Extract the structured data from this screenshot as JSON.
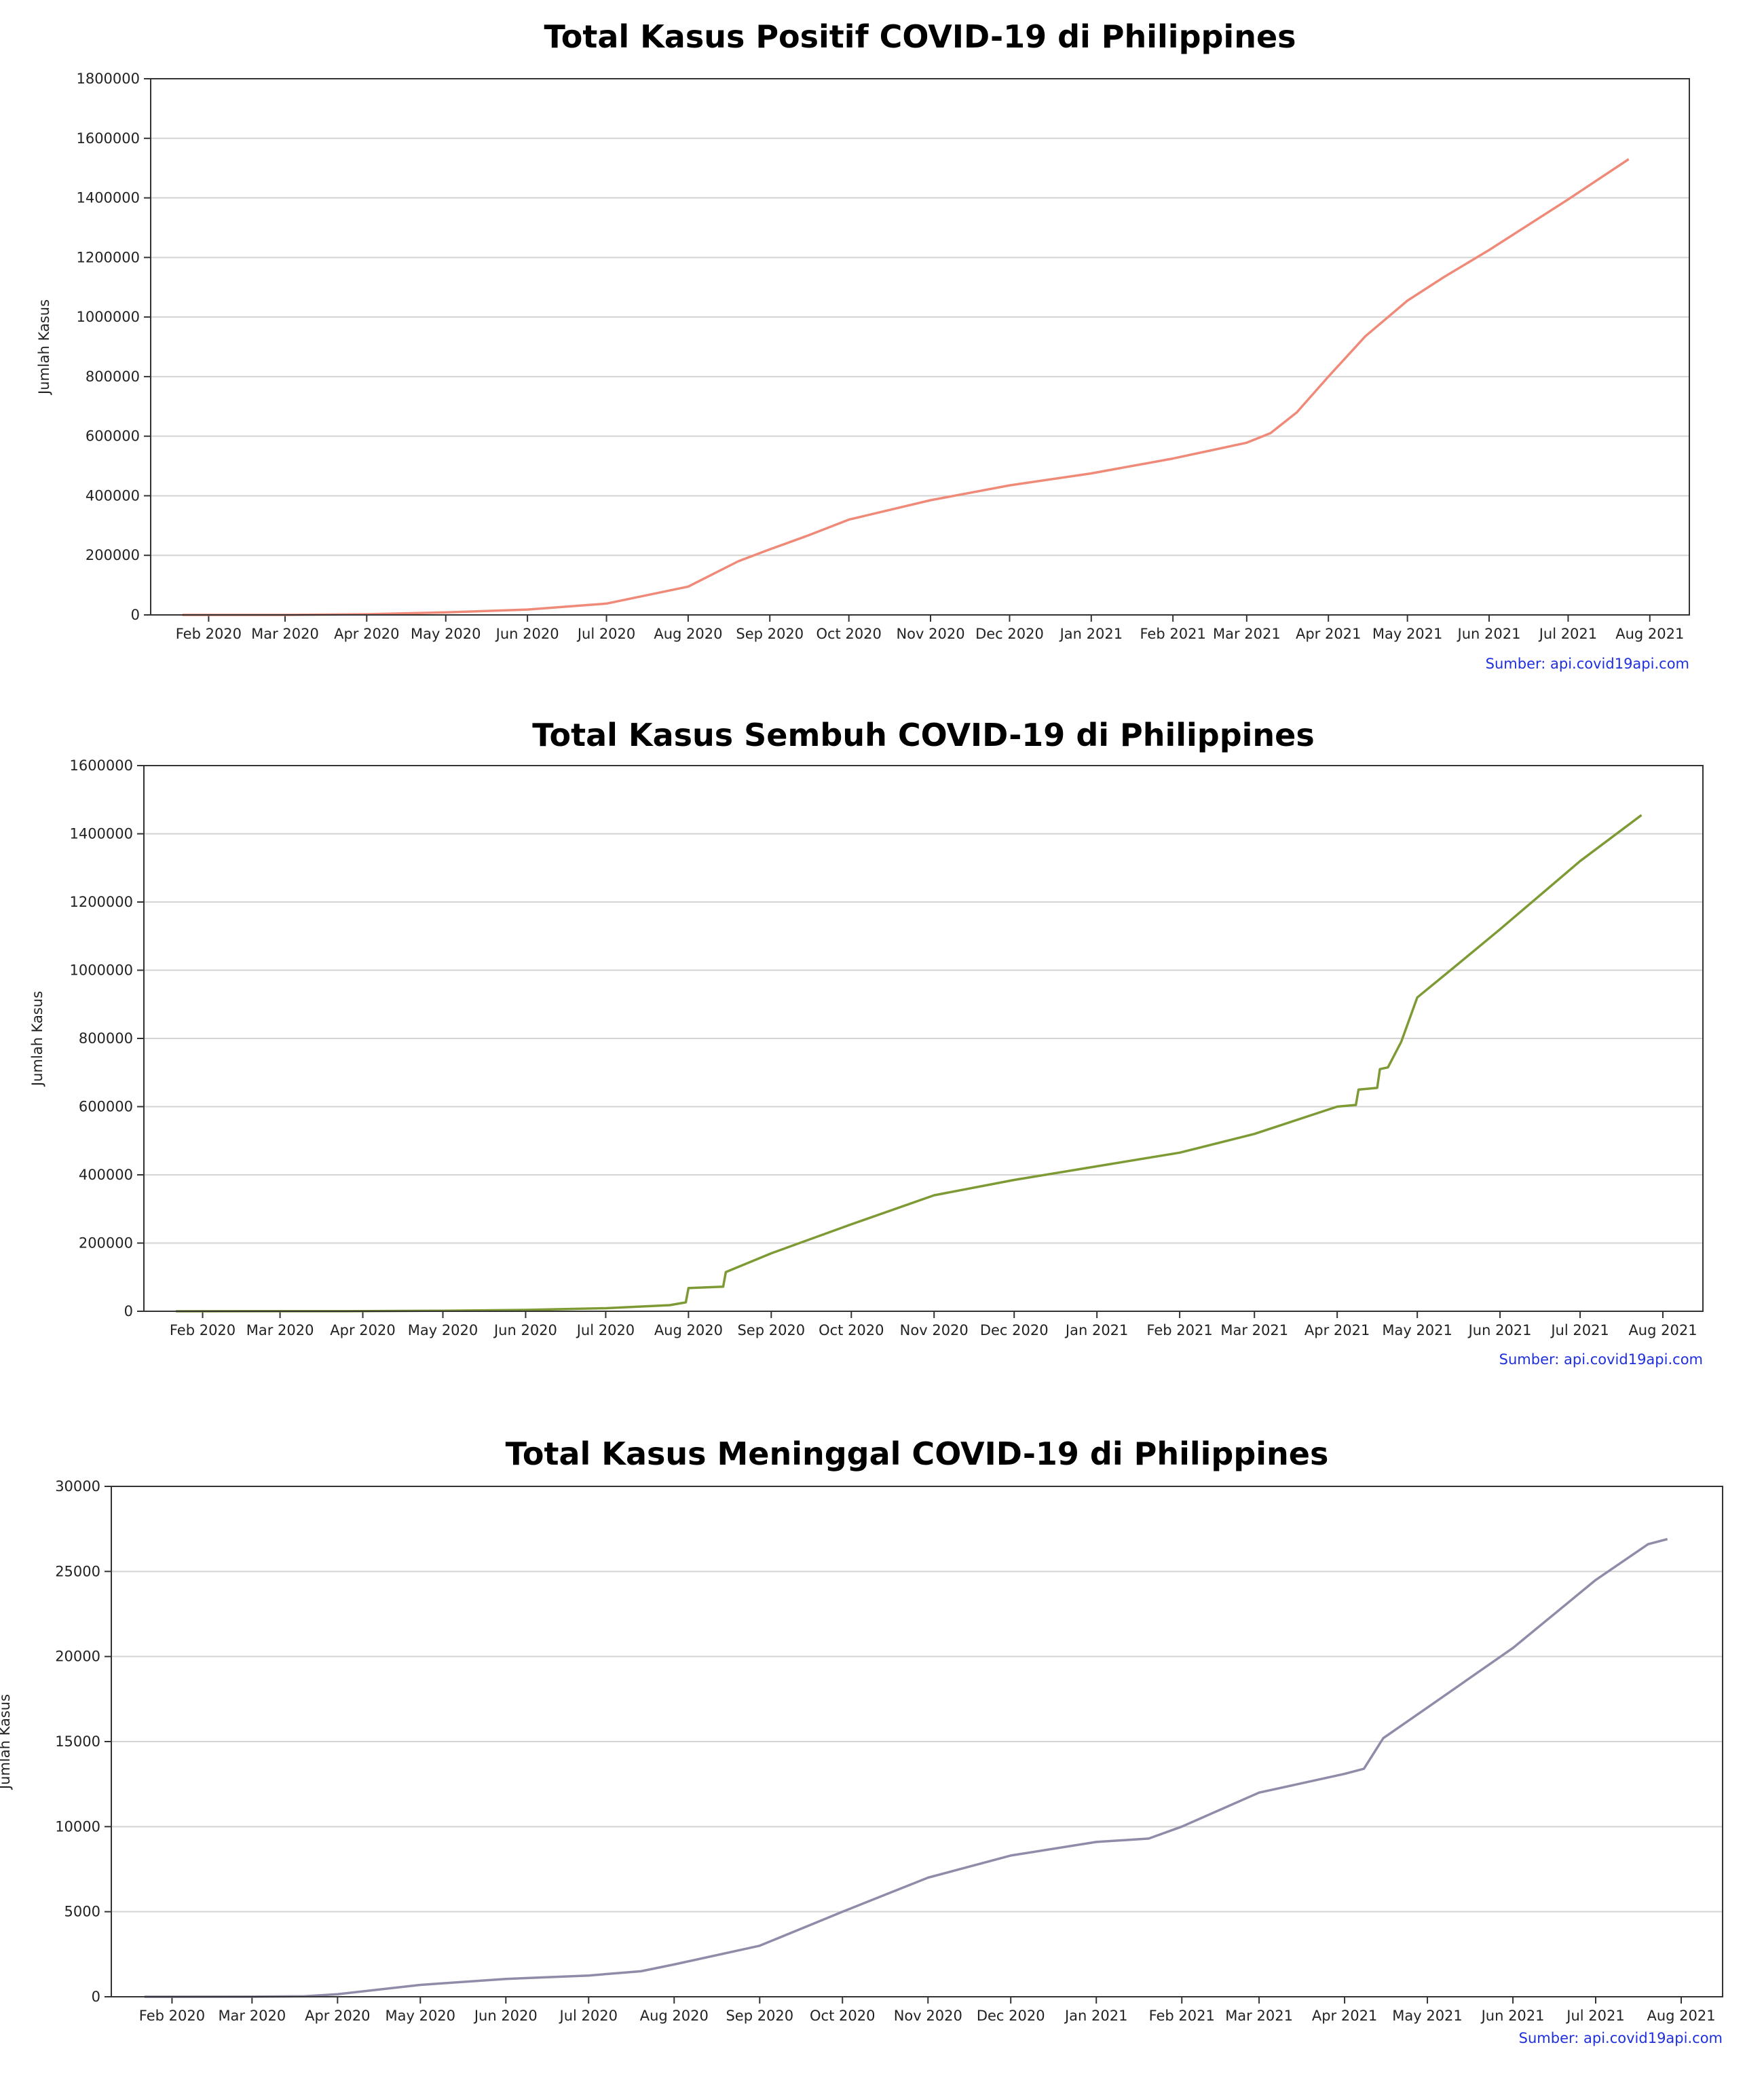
{
  "chart_data": [
    {
      "type": "line",
      "title": "Total Kasus Positif COVID-19 di Philippines",
      "xlabel": "",
      "ylabel": "Jumlah Kasus",
      "source": "Sumber: api.covid19api.com",
      "color": "#f08a78",
      "ylim": [
        0,
        1800000
      ],
      "yticks": [
        "0",
        "200000",
        "400000",
        "600000",
        "800000",
        "1000000",
        "1200000",
        "1400000",
        "1600000",
        "1800000"
      ],
      "xlim": [
        "2020-01-10",
        "2021-08-16"
      ],
      "xticks": [
        "Feb 2020",
        "Mar 2020",
        "Apr 2020",
        "May 2020",
        "Jun 2020",
        "Jul 2020",
        "Aug 2020",
        "Sep 2020",
        "Oct 2020",
        "Nov 2020",
        "Dec 2020",
        "Jan 2021",
        "Feb 2021",
        "Mar 2021",
        "Apr 2021",
        "May 2021",
        "Jun 2021",
        "Jul 2021",
        "Aug 2021"
      ],
      "grid": "horizontal",
      "x": [
        "2020-01-22",
        "2020-03-01",
        "2020-04-01",
        "2020-05-01",
        "2020-06-01",
        "2020-07-01",
        "2020-08-01",
        "2020-08-20",
        "2020-09-01",
        "2020-09-15",
        "2020-10-01",
        "2020-11-01",
        "2020-12-01",
        "2021-01-01",
        "2021-02-01",
        "2021-03-01",
        "2021-03-10",
        "2021-03-20",
        "2021-04-01",
        "2021-04-15",
        "2021-05-01",
        "2021-05-15",
        "2021-06-01",
        "2021-07-01",
        "2021-07-24"
      ],
      "y": [
        1,
        3,
        2300,
        8500,
        18000,
        38000,
        95000,
        180000,
        220000,
        265000,
        320000,
        385000,
        435000,
        475000,
        525000,
        578000,
        610000,
        680000,
        800000,
        935000,
        1055000,
        1135000,
        1225000,
        1395000,
        1530000
      ]
    },
    {
      "type": "line",
      "title": "Total Kasus Sembuh COVID-19 di Philippines",
      "xlabel": "",
      "ylabel": "Jumlah Kasus",
      "source": "Sumber: api.covid19api.com",
      "color": "#7e9a35",
      "ylim": [
        0,
        1600000
      ],
      "yticks": [
        "0",
        "200000",
        "400000",
        "600000",
        "800000",
        "1000000",
        "1200000",
        "1400000",
        "1600000"
      ],
      "xlim": [
        "2020-01-10",
        "2021-08-16"
      ],
      "xticks": [
        "Feb 2020",
        "Mar 2020",
        "Apr 2020",
        "May 2020",
        "Jun 2020",
        "Jul 2020",
        "Aug 2020",
        "Sep 2020",
        "Oct 2020",
        "Nov 2020",
        "Dec 2020",
        "Jan 2021",
        "Feb 2021",
        "Mar 2021",
        "Apr 2021",
        "May 2021",
        "Jun 2021",
        "Jul 2021",
        "Aug 2021"
      ],
      "grid": "horizontal",
      "x": [
        "2020-01-22",
        "2020-03-01",
        "2020-04-01",
        "2020-05-01",
        "2020-06-01",
        "2020-07-01",
        "2020-07-25",
        "2020-07-31",
        "2020-08-01",
        "2020-08-14",
        "2020-08-15",
        "2020-09-01",
        "2020-10-01",
        "2020-11-01",
        "2020-12-01",
        "2021-01-01",
        "2021-02-01",
        "2021-03-01",
        "2021-04-01",
        "2021-04-08",
        "2021-04-09",
        "2021-04-16",
        "2021-04-17",
        "2021-04-20",
        "2021-04-25",
        "2021-05-01",
        "2021-05-15",
        "2021-06-01",
        "2021-07-01",
        "2021-07-24"
      ],
      "y": [
        0,
        100,
        400,
        1500,
        4000,
        9000,
        18000,
        26000,
        68000,
        72000,
        115000,
        170000,
        255000,
        340000,
        385000,
        425000,
        465000,
        520000,
        600000,
        605000,
        650000,
        655000,
        710000,
        715000,
        790000,
        920000,
        1010000,
        1120000,
        1320000,
        1455000
      ]
    },
    {
      "type": "line",
      "title": "Total Kasus Meninggal COVID-19 di Philippines",
      "xlabel": "",
      "ylabel": "Jumlah Kasus",
      "source": "Sumber: api.covid19api.com",
      "color": "#8e8ca8",
      "ylim": [
        0,
        30000
      ],
      "yticks": [
        "0",
        "5000",
        "10000",
        "15000",
        "20000",
        "25000",
        "30000"
      ],
      "xlim": [
        "2020-01-10",
        "2021-08-16"
      ],
      "xticks": [
        "Feb 2020",
        "Mar 2020",
        "Apr 2020",
        "May 2020",
        "Jun 2020",
        "Jul 2020",
        "Aug 2020",
        "Sep 2020",
        "Oct 2020",
        "Nov 2020",
        "Dec 2020",
        "Jan 2021",
        "Feb 2021",
        "Mar 2021",
        "Apr 2021",
        "May 2021",
        "Jun 2021",
        "Jul 2021",
        "Aug 2021"
      ],
      "grid": "horizontal",
      "x": [
        "2020-01-22",
        "2020-03-01",
        "2020-03-20",
        "2020-04-01",
        "2020-05-01",
        "2020-06-01",
        "2020-07-01",
        "2020-07-20",
        "2020-08-01",
        "2020-09-01",
        "2020-09-25",
        "2020-10-01",
        "2020-11-01",
        "2020-12-01",
        "2021-01-01",
        "2021-01-20",
        "2021-02-01",
        "2021-03-01",
        "2021-04-01",
        "2021-04-08",
        "2021-04-15",
        "2021-05-01",
        "2021-06-01",
        "2021-07-01",
        "2021-07-20",
        "2021-07-27"
      ],
      "y": [
        0,
        2,
        30,
        150,
        700,
        1050,
        1250,
        1500,
        1900,
        3000,
        4600,
        5000,
        7000,
        8300,
        9100,
        9300,
        10000,
        12000,
        13100,
        13400,
        15200,
        17000,
        20500,
        24500,
        26600,
        26900
      ]
    }
  ]
}
